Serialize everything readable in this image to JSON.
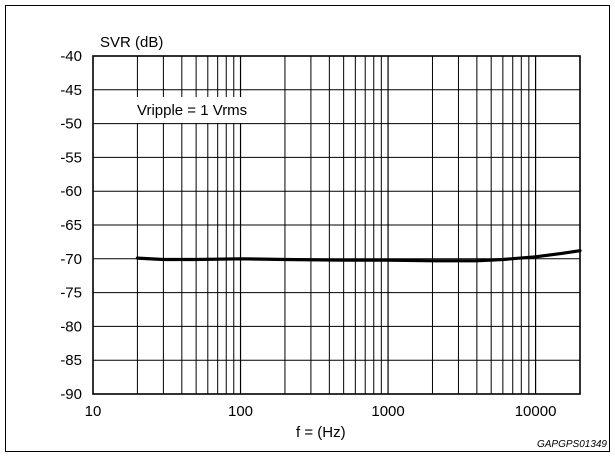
{
  "chart_data": {
    "type": "line",
    "ylabel": "SVR (dB)",
    "xlabel": "f = (Hz)",
    "annotation": "Vripple = 1 Vrms",
    "figure_code": "GAPGPS01349",
    "x_scale": "log",
    "xlim": [
      10,
      20000
    ],
    "ylim": [
      -90,
      -40
    ],
    "grid": true,
    "x_ticks": [
      10,
      100,
      1000,
      10000
    ],
    "x_tick_labels": [
      "10",
      "100",
      "1000",
      "10000"
    ],
    "y_ticks": [
      -40,
      -45,
      -50,
      -55,
      -60,
      -65,
      -70,
      -75,
      -80,
      -85,
      -90
    ],
    "y_tick_labels": [
      "-40",
      "-45",
      "-50",
      "-55",
      "-60",
      "-65",
      "-70",
      "-75",
      "-80",
      "-85",
      "-90"
    ],
    "series": [
      {
        "color": "#000000",
        "x": [
          20,
          30,
          50,
          100,
          200,
          500,
          1000,
          2000,
          4000,
          6000,
          10000,
          15000,
          20000
        ],
        "y": [
          -69.9,
          -70.1,
          -70.1,
          -70.0,
          -70.1,
          -70.2,
          -70.2,
          -70.3,
          -70.3,
          -70.1,
          -69.7,
          -69.2,
          -68.8
        ]
      }
    ]
  }
}
